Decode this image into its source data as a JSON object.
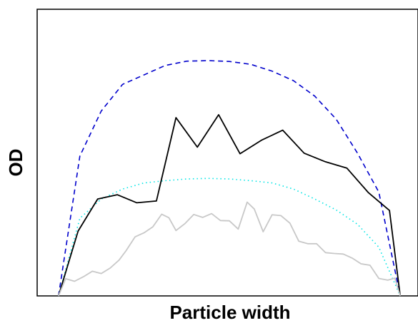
{
  "chart_data": {
    "type": "line",
    "title": "",
    "xlabel": "Particle width",
    "ylabel": "OD",
    "xlim": [
      0,
      1.07
    ],
    "ylim": [
      0,
      1
    ],
    "xticks": false,
    "yticks": false,
    "grid": false,
    "legend": "none",
    "series": [
      {
        "style": "dashed",
        "color": "#0000cc",
        "x": [
          0.06,
          0.12,
          0.18,
          0.24,
          0.3,
          0.36,
          0.42,
          0.48,
          0.54,
          0.6,
          0.66,
          0.72,
          0.78,
          0.84,
          0.9,
          0.96,
          1.02
        ],
        "y": [
          0,
          0.488,
          0.645,
          0.738,
          0.771,
          0.804,
          0.819,
          0.821,
          0.818,
          0.808,
          0.784,
          0.751,
          0.697,
          0.617,
          0.498,
          0.362,
          0
        ]
      },
      {
        "style": "dotted",
        "color": "#00e5e5",
        "x": [
          0.06,
          0.12,
          0.18,
          0.24,
          0.3,
          0.36,
          0.42,
          0.48,
          0.54,
          0.6,
          0.66,
          0.72,
          0.78,
          0.84,
          0.9,
          0.96,
          1.02
        ],
        "y": [
          0,
          0.271,
          0.338,
          0.373,
          0.394,
          0.402,
          0.408,
          0.41,
          0.408,
          0.402,
          0.394,
          0.373,
          0.338,
          0.3,
          0.25,
          0.17,
          0
        ]
      },
      {
        "style": "solid",
        "color": "#000000",
        "x": [
          0.06,
          0.115,
          0.17,
          0.225,
          0.28,
          0.335,
          0.39,
          0.45,
          0.51,
          0.57,
          0.63,
          0.69,
          0.75,
          0.81,
          0.87,
          0.93,
          0.99,
          1.02
        ],
        "y": [
          0,
          0.226,
          0.338,
          0.353,
          0.325,
          0.331,
          0.622,
          0.519,
          0.632,
          0.496,
          0.543,
          0.578,
          0.498,
          0.468,
          0.446,
          0.361,
          0.298,
          0
        ]
      },
      {
        "style": "solid",
        "color": "#c8c8c8",
        "x": [
          0.06,
          0.08,
          0.105,
          0.13,
          0.155,
          0.18,
          0.205,
          0.23,
          0.25,
          0.275,
          0.3,
          0.325,
          0.35,
          0.37,
          0.39,
          0.415,
          0.44,
          0.465,
          0.49,
          0.515,
          0.54,
          0.565,
          0.59,
          0.61,
          0.635,
          0.66,
          0.685,
          0.71,
          0.735,
          0.76,
          0.785,
          0.81,
          0.835,
          0.86,
          0.885,
          0.91,
          0.935,
          0.96,
          0.985,
          1.005,
          1.02
        ],
        "y": [
          0,
          0.06,
          0.051,
          0.067,
          0.086,
          0.078,
          0.097,
          0.125,
          0.158,
          0.206,
          0.22,
          0.241,
          0.285,
          0.273,
          0.228,
          0.252,
          0.284,
          0.274,
          0.287,
          0.263,
          0.262,
          0.233,
          0.327,
          0.303,
          0.224,
          0.283,
          0.28,
          0.254,
          0.191,
          0.182,
          0.182,
          0.151,
          0.148,
          0.146,
          0.132,
          0.112,
          0.107,
          0.061,
          0.055,
          0.062,
          0
        ]
      }
    ]
  }
}
